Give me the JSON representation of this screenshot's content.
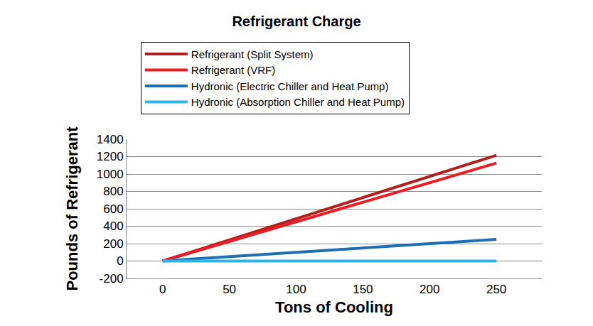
{
  "chart_data": {
    "type": "line",
    "title": "Refrigerant Charge",
    "x_label": "Tons of Cooling",
    "y_label": "Pounds of Refrigerant",
    "x": [
      0,
      250
    ],
    "series": [
      {
        "name": "Refrigerant (Split System)",
        "color": "#b01e1e",
        "values": [
          0,
          1215
        ]
      },
      {
        "name": "Refrigerant (VRF)",
        "color": "#ec1c24",
        "values": [
          0,
          1125
        ]
      },
      {
        "name": "Hydronic (Electric Chiller and Heat Pump)",
        "color": "#1f6db3",
        "values": [
          0,
          250
        ]
      },
      {
        "name": "Hydronic (Absorption Chiller and Heat Pump)",
        "color": "#2fb4e9",
        "values": [
          0,
          0
        ]
      }
    ],
    "xlim": [
      -27,
      284
    ],
    "xticks": [
      0,
      50,
      100,
      150,
      200,
      250
    ],
    "ylim": [
      -200,
      1400
    ],
    "yticks": [
      -200,
      0,
      200,
      400,
      600,
      800,
      1000,
      1200,
      1400
    ],
    "grid": true,
    "legend": "top"
  }
}
